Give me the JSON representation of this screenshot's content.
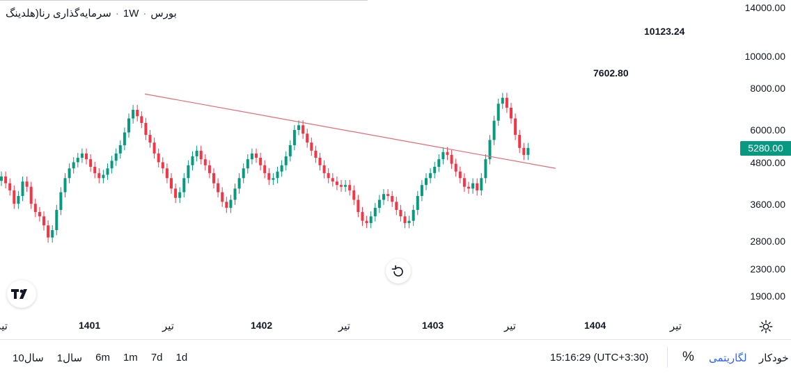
{
  "legend": {
    "symbol": "سرمایه‌گذاری رنا(هلدینگ",
    "interval": "1W",
    "exchange": "بورس",
    "dot": "·"
  },
  "annotations": [
    {
      "text": "10123.24",
      "value": 10123.24
    },
    {
      "text": "7602.80",
      "value": 7602.8
    }
  ],
  "price_badge": {
    "text": "5280.00",
    "color": "#089981"
  },
  "colors": {
    "up": "#089981",
    "down": "#f23645",
    "trendline": "#e06b75",
    "accent": "#2962ff"
  },
  "x_labels": [
    {
      "text": "تیر",
      "bold": false,
      "partial": true
    },
    {
      "text": "1401",
      "bold": true
    },
    {
      "text": "تیر",
      "bold": false
    },
    {
      "text": "1402",
      "bold": true
    },
    {
      "text": "تیر",
      "bold": false
    },
    {
      "text": "1403",
      "bold": true
    },
    {
      "text": "تیر",
      "bold": false
    },
    {
      "text": "1404",
      "bold": true
    },
    {
      "text": "تیر",
      "bold": false
    }
  ],
  "chart_data": {
    "type": "candlestick",
    "interval": "1W",
    "scale": "log",
    "y_ticks": [
      "14000.00",
      "10000.00",
      "8000.00",
      "6000.00",
      "4800.00",
      "3600.00",
      "2800.00",
      "2300.00",
      "1900.00"
    ],
    "y_tick_values": [
      14000,
      10000,
      8000,
      6000,
      4800,
      3600,
      2800,
      2300,
      1900
    ],
    "last_price": 5280.0,
    "trendline": {
      "from": 7700,
      "to": 4600
    },
    "closes": [
      4350,
      4150,
      3950,
      3600,
      3800,
      4200,
      4050,
      3600,
      3400,
      3300,
      3100,
      2850,
      3000,
      3450,
      3900,
      4300,
      4600,
      4800,
      4950,
      5100,
      4900,
      4650,
      4450,
      4300,
      4400,
      4600,
      4850,
      5100,
      5400,
      5900,
      6500,
      6900,
      6600,
      6300,
      5800,
      5500,
      5100,
      4800,
      4600,
      4300,
      4000,
      3750,
      3900,
      4300,
      4700,
      5000,
      5200,
      4900,
      4700,
      4450,
      4150,
      3900,
      3650,
      3500,
      3700,
      4000,
      4300,
      4600,
      4900,
      5100,
      4950,
      4700,
      4450,
      4250,
      4300,
      4500,
      4700,
      5000,
      5400,
      6000,
      6200,
      5850,
      5500,
      5200,
      4950,
      4700,
      4450,
      4300,
      4200,
      4100,
      4050,
      4100,
      3950,
      3700,
      3400,
      3200,
      3150,
      3300,
      3500,
      3700,
      3850,
      3800,
      3650,
      3450,
      3300,
      3150,
      3200,
      3450,
      3800,
      4100,
      4300,
      4450,
      4650,
      4900,
      5150,
      5050,
      4750,
      4500,
      4300,
      4050,
      4000,
      4150,
      3950,
      4300,
      4900,
      5600,
      6400,
      7200,
      7500,
      7000,
      6500,
      5800,
      5300,
      5050,
      5300
    ]
  },
  "reset_button": {
    "icon": "reset-icon"
  },
  "settings": {
    "icon": "gear-icon"
  },
  "bottom_bar": {
    "ranges": [
      "10سال",
      "1سال",
      "6m",
      "1m",
      "7d",
      "1d"
    ],
    "clock": "15:16:29 (UTC+3:30)",
    "percent": "%",
    "log_label": "لگاریتمی",
    "auto_label": "خودکار"
  }
}
